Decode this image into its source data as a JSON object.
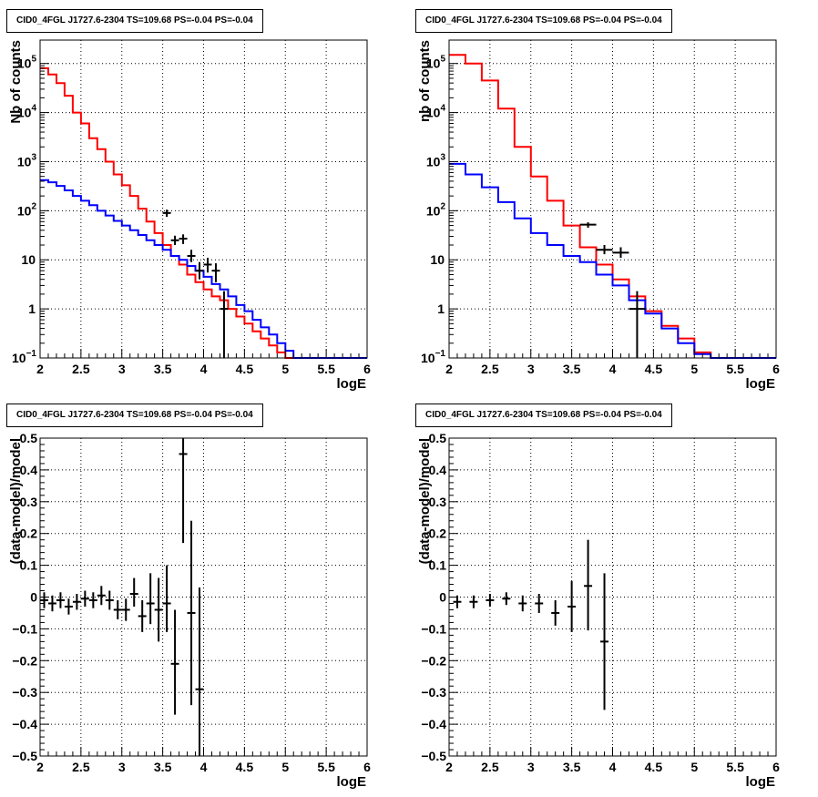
{
  "chart_data": [
    {
      "id": "tl",
      "type": "line",
      "title": "CID0_4FGL J1727.6-2304 TS=109.68 PS=-0.04 PS=-0.04",
      "xlabel": "logE",
      "ylabel": "Nb of counts",
      "xlim": [
        2,
        6
      ],
      "ylim": [
        0.1,
        300000
      ],
      "yscale": "log",
      "grid": true,
      "xticks": [
        "2",
        "2.5",
        "3",
        "3.5",
        "4",
        "4.5",
        "5",
        "5.5",
        "6"
      ],
      "yticks_log": [
        {
          "v": 0.1,
          "base": "10",
          "exp": "−1"
        },
        {
          "v": 1,
          "base": "1",
          "exp": ""
        },
        {
          "v": 10,
          "base": "10",
          "exp": ""
        },
        {
          "v": 100,
          "base": "10",
          "exp": "2"
        },
        {
          "v": 1000,
          "base": "10",
          "exp": "3"
        },
        {
          "v": 10000,
          "base": "10",
          "exp": "4"
        },
        {
          "v": 100000,
          "base": "10",
          "exp": "5"
        }
      ],
      "bin_edges": [
        2.0,
        2.1,
        2.2,
        2.3,
        2.4,
        2.5,
        2.6,
        2.7,
        2.8,
        2.9,
        3.0,
        3.1,
        3.2,
        3.3,
        3.4,
        3.5,
        3.6,
        3.7,
        3.8,
        3.9,
        4.0,
        4.1,
        4.2,
        4.3,
        4.4,
        4.5,
        4.6,
        4.7,
        4.8,
        4.9,
        5.0,
        5.1,
        5.2,
        5.3,
        5.4,
        5.5,
        5.6,
        5.7,
        5.8,
        5.9,
        6.0
      ],
      "series": [
        {
          "color": "#ff0000",
          "style": "step",
          "values": [
            80000,
            60000,
            40000,
            22000,
            10000,
            6000,
            3000,
            1800,
            1000,
            550,
            330,
            200,
            110,
            60,
            35,
            20,
            12,
            8,
            5,
            3.5,
            2.5,
            1.8,
            1.5,
            1.0,
            0.7,
            0.5,
            0.35,
            0.25,
            0.18,
            0.13,
            0.1,
            0.1,
            0.1,
            0.1,
            0.1,
            0.1,
            0.1,
            0.1,
            0.1,
            0.1
          ]
        },
        {
          "color": "#0000ff",
          "style": "step",
          "values": [
            420,
            380,
            320,
            260,
            200,
            160,
            130,
            100,
            80,
            62,
            50,
            40,
            32,
            25,
            20,
            16,
            12,
            10,
            7.5,
            6,
            4.5,
            3.2,
            2.5,
            1.8,
            1.2,
            0.9,
            0.6,
            0.42,
            0.3,
            0.2,
            0.14,
            0.1,
            0.1,
            0.1,
            0.1,
            0.1,
            0.1,
            0.1,
            0.1,
            0.1
          ]
        }
      ],
      "points": [
        {
          "x": 3.55,
          "y": 90,
          "lo": 75,
          "hi": 105
        },
        {
          "x": 3.65,
          "y": 25,
          "lo": 20,
          "hi": 31
        },
        {
          "x": 3.75,
          "y": 27,
          "lo": 21,
          "hi": 33
        },
        {
          "x": 3.85,
          "y": 12,
          "lo": 9,
          "hi": 16
        },
        {
          "x": 3.95,
          "y": 6,
          "lo": 4,
          "hi": 9
        },
        {
          "x": 4.05,
          "y": 8,
          "lo": 5.5,
          "hi": 11
        },
        {
          "x": 4.15,
          "y": 6,
          "lo": 3.5,
          "hi": 8.5
        },
        {
          "x": 4.25,
          "y": 1,
          "lo": 0.1,
          "hi": 2.3
        }
      ]
    },
    {
      "id": "tr",
      "type": "line",
      "title": "CID0_4FGL J1727.6-2304 TS=109.68 PS=-0.04 PS=-0.04",
      "xlabel": "logE",
      "ylabel": "nb of counts",
      "xlim": [
        2,
        6
      ],
      "ylim": [
        0.1,
        300000
      ],
      "yscale": "log",
      "grid": true,
      "xticks": [
        "2",
        "2.5",
        "3",
        "3.5",
        "4",
        "4.5",
        "5",
        "5.5",
        "6"
      ],
      "yticks_log": [
        {
          "v": 0.1,
          "base": "10",
          "exp": "−1"
        },
        {
          "v": 1,
          "base": "1",
          "exp": ""
        },
        {
          "v": 10,
          "base": "10",
          "exp": ""
        },
        {
          "v": 100,
          "base": "10",
          "exp": "2"
        },
        {
          "v": 1000,
          "base": "10",
          "exp": "3"
        },
        {
          "v": 10000,
          "base": "10",
          "exp": "4"
        },
        {
          "v": 100000,
          "base": "10",
          "exp": "5"
        }
      ],
      "bin_edges": [
        2.0,
        2.2,
        2.4,
        2.6,
        2.8,
        3.0,
        3.2,
        3.4,
        3.6,
        3.8,
        4.0,
        4.2,
        4.4,
        4.6,
        4.8,
        5.0,
        5.2,
        5.4,
        5.6,
        5.8,
        6.0
      ],
      "series": [
        {
          "color": "#ff0000",
          "style": "step",
          "values": [
            150000,
            100000,
            45000,
            12000,
            2000,
            500,
            160,
            50,
            18,
            8,
            4,
            1.8,
            0.9,
            0.45,
            0.25,
            0.13,
            0.1,
            0.1,
            0.1,
            0.1
          ]
        },
        {
          "color": "#0000ff",
          "style": "step",
          "values": [
            900,
            550,
            300,
            150,
            70,
            35,
            20,
            12,
            9,
            5,
            3,
            1.5,
            0.8,
            0.4,
            0.2,
            0.12,
            0.1,
            0.1,
            0.1,
            0.1
          ]
        }
      ],
      "points": [
        {
          "x": 3.7,
          "y": 52,
          "lo": 45,
          "hi": 58
        },
        {
          "x": 3.9,
          "y": 16,
          "lo": 13,
          "hi": 20
        },
        {
          "x": 4.1,
          "y": 14,
          "lo": 11,
          "hi": 18
        },
        {
          "x": 4.3,
          "y": 1,
          "lo": 0.1,
          "hi": 2.3
        }
      ]
    },
    {
      "id": "bl",
      "type": "scatter",
      "title": "CID0_4FGL J1727.6-2304 TS=109.68 PS=-0.04 PS=-0.04",
      "xlabel": "logE",
      "ylabel": "(data-model)/model",
      "xlim": [
        2,
        6
      ],
      "ylim": [
        -0.5,
        0.5
      ],
      "yscale": "linear",
      "grid": true,
      "xticks": [
        "2",
        "2.5",
        "3",
        "3.5",
        "4",
        "4.5",
        "5",
        "5.5",
        "6"
      ],
      "yticks": [
        "−0.5",
        "−0.4",
        "−0.3",
        "−0.2",
        "−0.1",
        "0",
        "0.1",
        "0.2",
        "0.3",
        "0.4",
        "0.5"
      ],
      "points": [
        {
          "x": 2.05,
          "y": -0.01,
          "lo": -0.035,
          "hi": 0.015
        },
        {
          "x": 2.15,
          "y": -0.02,
          "lo": -0.045,
          "hi": 0.005
        },
        {
          "x": 2.25,
          "y": -0.01,
          "lo": -0.035,
          "hi": 0.015
        },
        {
          "x": 2.35,
          "y": -0.03,
          "lo": -0.055,
          "hi": -0.005
        },
        {
          "x": 2.45,
          "y": -0.015,
          "lo": -0.04,
          "hi": 0.01
        },
        {
          "x": 2.55,
          "y": -0.005,
          "lo": -0.03,
          "hi": 0.02
        },
        {
          "x": 2.65,
          "y": -0.01,
          "lo": -0.035,
          "hi": 0.015
        },
        {
          "x": 2.75,
          "y": 0.005,
          "lo": -0.025,
          "hi": 0.035
        },
        {
          "x": 2.85,
          "y": -0.01,
          "lo": -0.04,
          "hi": 0.02
        },
        {
          "x": 2.95,
          "y": -0.04,
          "lo": -0.07,
          "hi": -0.01
        },
        {
          "x": 3.05,
          "y": -0.04,
          "lo": -0.075,
          "hi": -0.005
        },
        {
          "x": 3.15,
          "y": 0.01,
          "lo": -0.03,
          "hi": 0.06
        },
        {
          "x": 3.25,
          "y": -0.06,
          "lo": -0.11,
          "hi": -0.01
        },
        {
          "x": 3.35,
          "y": -0.02,
          "lo": -0.085,
          "hi": 0.075
        },
        {
          "x": 3.45,
          "y": -0.04,
          "lo": -0.14,
          "hi": 0.06
        },
        {
          "x": 3.55,
          "y": -0.02,
          "lo": -0.11,
          "hi": 0.1
        },
        {
          "x": 3.65,
          "y": -0.21,
          "lo": -0.37,
          "hi": -0.04
        },
        {
          "x": 3.75,
          "y": 0.45,
          "lo": 0.17,
          "hi": 0.72
        },
        {
          "x": 3.85,
          "y": -0.05,
          "lo": -0.34,
          "hi": 0.24
        },
        {
          "x": 3.95,
          "y": -0.29,
          "lo": -0.6,
          "hi": 0.03
        }
      ]
    },
    {
      "id": "br",
      "type": "scatter",
      "title": "CID0_4FGL J1727.6-2304 TS=109.68 PS=-0.04 PS=-0.04",
      "xlabel": "logE",
      "ylabel": "(data-model)/model",
      "xlim": [
        2,
        6
      ],
      "ylim": [
        -0.5,
        0.5
      ],
      "yscale": "linear",
      "grid": true,
      "xticks": [
        "2",
        "2.5",
        "3",
        "3.5",
        "4",
        "4.5",
        "5",
        "5.5",
        "6"
      ],
      "yticks": [
        "−0.5",
        "−0.4",
        "−0.3",
        "−0.2",
        "−0.1",
        "0",
        "0.1",
        "0.2",
        "0.3",
        "0.4",
        "0.5"
      ],
      "points": [
        {
          "x": 2.1,
          "y": -0.015,
          "lo": -0.035,
          "hi": 0.005
        },
        {
          "x": 2.3,
          "y": -0.015,
          "lo": -0.035,
          "hi": 0.005
        },
        {
          "x": 2.5,
          "y": -0.01,
          "lo": -0.03,
          "hi": 0.01
        },
        {
          "x": 2.7,
          "y": -0.005,
          "lo": -0.025,
          "hi": 0.015
        },
        {
          "x": 2.9,
          "y": -0.02,
          "lo": -0.045,
          "hi": 0.005
        },
        {
          "x": 3.1,
          "y": -0.02,
          "lo": -0.05,
          "hi": 0.01
        },
        {
          "x": 3.3,
          "y": -0.05,
          "lo": -0.09,
          "hi": -0.01
        },
        {
          "x": 3.5,
          "y": -0.03,
          "lo": -0.11,
          "hi": 0.05
        },
        {
          "x": 3.7,
          "y": 0.035,
          "lo": -0.105,
          "hi": 0.18
        },
        {
          "x": 3.9,
          "y": -0.14,
          "lo": -0.355,
          "hi": 0.075
        }
      ]
    }
  ]
}
